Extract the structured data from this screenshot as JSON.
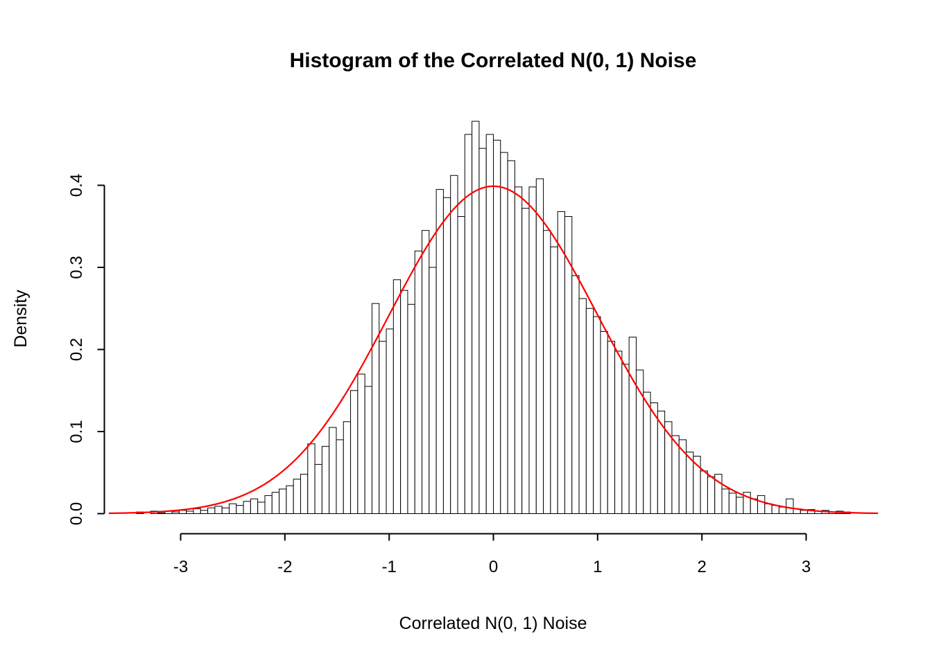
{
  "chart_data": {
    "type": "bar",
    "subtype": "histogram-with-density-overlay",
    "title": "Histogram of the Correlated N(0, 1) Noise",
    "xlabel": "Correlated N(0, 1) Noise",
    "ylabel": "Density",
    "x_ticks": [
      -3,
      -2,
      -1,
      0,
      1,
      2,
      3
    ],
    "x_tick_labels": [
      "-3",
      "-2",
      "-1",
      "0",
      "1",
      "2",
      "3"
    ],
    "y_ticks": [
      0.0,
      0.1,
      0.2,
      0.3,
      0.4
    ],
    "y_tick_labels": [
      "0.0",
      "0.1",
      "0.2",
      "0.3",
      "0.4"
    ],
    "xlim": [
      -3.7,
      3.7
    ],
    "ylim": [
      0.0,
      0.48
    ],
    "grid": false,
    "legend": "none",
    "bar_fill": "#FFFFFF",
    "bar_stroke": "#000000",
    "axis_color": "#000000",
    "bin_start": -3.425,
    "bin_width": 0.0685,
    "bar_heights": [
      0.002,
      0.0,
      0.003,
      0.001,
      0.003,
      0.002,
      0.004,
      0.003,
      0.006,
      0.004,
      0.007,
      0.009,
      0.007,
      0.012,
      0.01,
      0.015,
      0.018,
      0.014,
      0.022,
      0.026,
      0.03,
      0.034,
      0.042,
      0.048,
      0.085,
      0.06,
      0.082,
      0.105,
      0.09,
      0.112,
      0.15,
      0.17,
      0.155,
      0.256,
      0.21,
      0.225,
      0.285,
      0.272,
      0.255,
      0.32,
      0.345,
      0.3,
      0.395,
      0.385,
      0.412,
      0.362,
      0.462,
      0.478,
      0.445,
      0.462,
      0.455,
      0.44,
      0.43,
      0.398,
      0.372,
      0.398,
      0.408,
      0.345,
      0.325,
      0.368,
      0.362,
      0.29,
      0.262,
      0.25,
      0.24,
      0.222,
      0.21,
      0.198,
      0.182,
      0.215,
      0.175,
      0.148,
      0.135,
      0.125,
      0.112,
      0.095,
      0.09,
      0.075,
      0.07,
      0.052,
      0.045,
      0.048,
      0.03,
      0.025,
      0.02,
      0.026,
      0.018,
      0.022,
      0.012,
      0.01,
      0.008,
      0.018,
      0.006,
      0.004,
      0.005,
      0.003,
      0.004,
      0.002,
      0.003,
      0.002
    ],
    "overlay_curve": {
      "name": "normal-density",
      "distribution": "normal",
      "mean": 0,
      "sd": 1,
      "peak_density": 0.3989,
      "color": "#FF0000",
      "x_range": [
        -3.69,
        3.69
      ]
    }
  }
}
